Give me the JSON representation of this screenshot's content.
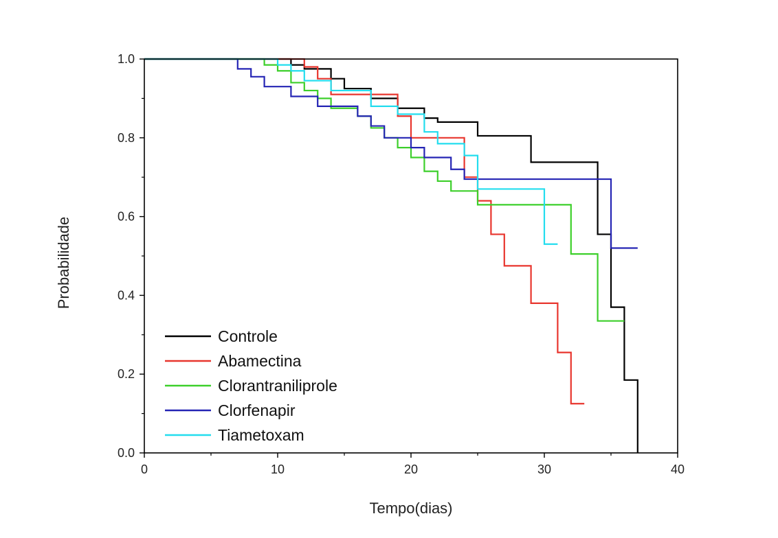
{
  "chart_data": {
    "type": "line",
    "subtype": "kaplan-meier step survival curves",
    "title": "",
    "xlabel": "Tempo(dias)",
    "ylabel": "Probabilidade",
    "xlim": [
      0,
      40
    ],
    "ylim": [
      0,
      1.0
    ],
    "x_ticks": [
      "0",
      "10",
      "20",
      "30",
      "40"
    ],
    "y_ticks": [
      "0.0",
      "0.2",
      "0.4",
      "0.6",
      "0.8",
      "1.0"
    ],
    "grid": false,
    "legend_position": "bottom-left",
    "series": [
      {
        "name": "Controle",
        "color": "#000000",
        "x": [
          0,
          11,
          12,
          14,
          15,
          17,
          19,
          21,
          22,
          25,
          29,
          34,
          35,
          36,
          37
        ],
        "y": [
          1.0,
          0.985,
          0.975,
          0.95,
          0.925,
          0.9,
          0.875,
          0.85,
          0.84,
          0.805,
          0.738,
          0.555,
          0.37,
          0.185,
          0.0
        ]
      },
      {
        "name": "Abamectina",
        "color": "#e8352d",
        "x": [
          0,
          12,
          13,
          14,
          19,
          20,
          24,
          25,
          26,
          27,
          29,
          31,
          32,
          33
        ],
        "y": [
          1.0,
          0.98,
          0.95,
          0.91,
          0.855,
          0.8,
          0.7,
          0.64,
          0.555,
          0.475,
          0.38,
          0.255,
          0.125,
          0.125
        ]
      },
      {
        "name": "Clorantraniliprole",
        "color": "#3ccf2a",
        "x": [
          0,
          9,
          10,
          11,
          12,
          13,
          14,
          16,
          17,
          18,
          19,
          20,
          21,
          22,
          23,
          25,
          32,
          34,
          36
        ],
        "y": [
          1.0,
          0.985,
          0.97,
          0.94,
          0.92,
          0.9,
          0.875,
          0.855,
          0.825,
          0.8,
          0.775,
          0.75,
          0.715,
          0.69,
          0.665,
          0.63,
          0.505,
          0.335,
          0.335
        ]
      },
      {
        "name": "Clorfenapir",
        "color": "#2424b4",
        "x": [
          0,
          7,
          8,
          9,
          11,
          13,
          16,
          17,
          18,
          20,
          21,
          23,
          24,
          35,
          37
        ],
        "y": [
          1.0,
          0.975,
          0.955,
          0.93,
          0.905,
          0.88,
          0.855,
          0.83,
          0.8,
          0.775,
          0.75,
          0.72,
          0.695,
          0.52,
          0.52
        ]
      },
      {
        "name": "Tiametoxam",
        "color": "#22ddee",
        "x": [
          0,
          10,
          11,
          12,
          14,
          17,
          19,
          21,
          22,
          24,
          25,
          30,
          31
        ],
        "y": [
          1.0,
          0.985,
          0.97,
          0.945,
          0.92,
          0.88,
          0.86,
          0.815,
          0.785,
          0.755,
          0.67,
          0.53,
          0.53
        ]
      }
    ]
  }
}
